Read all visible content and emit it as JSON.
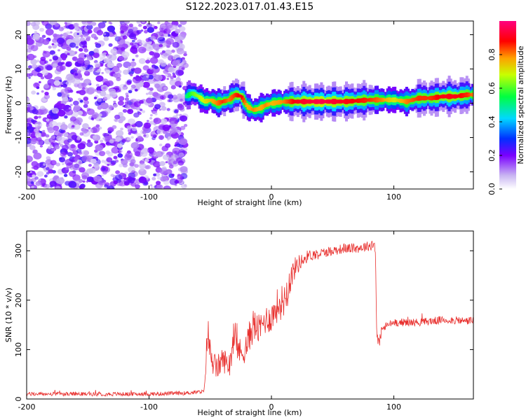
{
  "title": "S122.2023.017.01.43.E15",
  "chart_data": [
    {
      "type": "heatmap",
      "xlabel": "Height of straight line (km)",
      "ylabel": "Frequency (Hz)",
      "xlim": [
        -200,
        165
      ],
      "ylim": [
        -25,
        24
      ],
      "x_ticks": [
        -200,
        -100,
        0,
        100
      ],
      "y_ticks": [
        -20,
        -10,
        0,
        10,
        20
      ],
      "colorbar": {
        "label": "Normalized spectral amplitude",
        "range": [
          0,
          1
        ],
        "ticks": [
          "0.0",
          "0.2",
          "0.4",
          "0.6",
          "0.8"
        ],
        "colormap": "white-purple-blue-cyan-green-yellow-red-magenta"
      },
      "noise_region": {
        "x": [
          -200,
          -70
        ],
        "description_value": "broadband low-amplitude noise across all frequencies"
      },
      "ridge": {
        "x": [
          -70,
          -65,
          -60,
          -55,
          -50,
          -45,
          -40,
          -35,
          -30,
          -25,
          -20,
          -15,
          -10,
          -5,
          0,
          10,
          20,
          40,
          60,
          80,
          90,
          100,
          110,
          120,
          130,
          140,
          150,
          160,
          165
        ],
        "y": [
          2,
          3,
          2,
          0.5,
          1,
          0,
          0.5,
          1,
          2.5,
          2,
          -1,
          -2,
          -1.5,
          -0.5,
          0,
          0.5,
          0.5,
          0.5,
          0.5,
          1,
          1,
          1,
          0.5,
          1.5,
          1.5,
          2,
          2,
          2.5,
          2.5
        ],
        "amplitude": [
          0.5,
          0.6,
          0.65,
          0.7,
          0.75,
          0.8,
          0.85,
          0.8,
          0.85,
          0.9,
          0.75,
          0.8,
          0.75,
          0.8,
          0.75,
          0.8,
          0.9,
          0.95,
          0.9,
          0.85,
          0.8,
          0.7,
          0.8,
          0.85,
          0.85,
          0.9,
          0.9,
          0.85,
          0.8
        ]
      },
      "grid": false
    },
    {
      "type": "line",
      "xlabel": "Height of straight line (km)",
      "ylabel": "SNR (10 * v/v)",
      "xlim": [
        -200,
        165
      ],
      "ylim": [
        0,
        340
      ],
      "x_ticks": [
        -200,
        -100,
        0,
        100
      ],
      "y_ticks": [
        0,
        100,
        200,
        300
      ],
      "color": "#e8302e",
      "grid": false,
      "series": [
        {
          "x": [
            -200,
            -150,
            -100,
            -70,
            -55,
            -52,
            -50,
            -45,
            -40,
            -35,
            -30,
            -25,
            -20,
            -15,
            -10,
            -5,
            0,
            5,
            10,
            15,
            20,
            25,
            30,
            40,
            50,
            60,
            70,
            80,
            84,
            85,
            86,
            88,
            90,
            95,
            100,
            120,
            140,
            160,
            165
          ],
          "y": [
            10,
            10,
            10,
            12,
            15,
            140,
            90,
            60,
            80,
            70,
            120,
            90,
            110,
            150,
            140,
            160,
            165,
            190,
            200,
            240,
            270,
            280,
            290,
            295,
            300,
            305,
            305,
            310,
            315,
            300,
            130,
            110,
            140,
            150,
            155,
            155,
            160,
            158,
            160
          ],
          "noise_amplitude": [
            4,
            4,
            4,
            4,
            4,
            40,
            30,
            25,
            25,
            25,
            30,
            30,
            30,
            35,
            30,
            30,
            30,
            35,
            35,
            30,
            20,
            15,
            12,
            10,
            10,
            10,
            10,
            10,
            15,
            10,
            15,
            12,
            10,
            8,
            8,
            8,
            8,
            8,
            8
          ]
        }
      ]
    }
  ]
}
